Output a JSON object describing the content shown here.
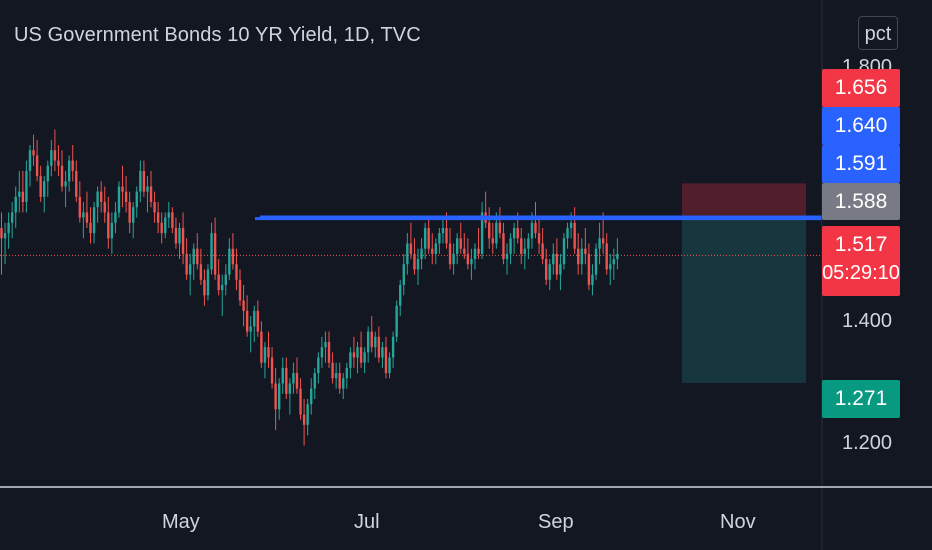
{
  "header": {
    "title": "US Government Bonds 10 YR Yield, 1D, TVC",
    "scale_mode": "pct"
  },
  "price_axis": {
    "visible_ticks": [
      "1.800",
      "1.400",
      "1.200"
    ],
    "tags": {
      "stop": "1.656",
      "level_upper": "1.640",
      "level_1": "1.591",
      "level_2": "1.588",
      "last": "1.517",
      "countdown": "05:29:10",
      "target": "1.271"
    }
  },
  "time_axis": {
    "labels": [
      "May",
      "Jul",
      "Sep",
      "Nov"
    ]
  },
  "colors": {
    "background": "#131722",
    "up": "#26a69a",
    "down": "#ef5350",
    "level_line": "#2962ff",
    "stop_zone": "rgba(242,54,69,0.28)",
    "target_zone": "rgba(38,166,154,0.22)",
    "tag_stop": "#f23645",
    "tag_upper": "#2962ff",
    "tag_grey": "#787b86",
    "tag_target": "#089981",
    "text": "#d1d4dc"
  },
  "chart_data": {
    "type": "candlestick",
    "title": "US Government Bonds 10 YR Yield, 1D, TVC",
    "y_unit": "pct",
    "ylim": [
      1.13,
      1.84
    ],
    "x_labels": [
      "May",
      "Jul",
      "Sep",
      "Nov"
    ],
    "current_price": 1.517,
    "horizontal_levels": [
      1.591,
      1.588
    ],
    "position": {
      "type": "short",
      "stop": 1.656,
      "entry": 1.588,
      "target": 1.271
    },
    "candles": [
      [
        1.57,
        1.6,
        1.48,
        1.55
      ],
      [
        1.55,
        1.58,
        1.5,
        1.56
      ],
      [
        1.56,
        1.6,
        1.53,
        1.58
      ],
      [
        1.58,
        1.62,
        1.55,
        1.6
      ],
      [
        1.6,
        1.65,
        1.57,
        1.63
      ],
      [
        1.63,
        1.68,
        1.6,
        1.64
      ],
      [
        1.64,
        1.68,
        1.6,
        1.62
      ],
      [
        1.62,
        1.7,
        1.6,
        1.68
      ],
      [
        1.68,
        1.73,
        1.65,
        1.72
      ],
      [
        1.72,
        1.75,
        1.69,
        1.71
      ],
      [
        1.71,
        1.74,
        1.66,
        1.67
      ],
      [
        1.67,
        1.69,
        1.62,
        1.63
      ],
      [
        1.63,
        1.67,
        1.6,
        1.66
      ],
      [
        1.66,
        1.7,
        1.63,
        1.69
      ],
      [
        1.69,
        1.74,
        1.67,
        1.72
      ],
      [
        1.72,
        1.76,
        1.68,
        1.7
      ],
      [
        1.7,
        1.73,
        1.67,
        1.69
      ],
      [
        1.69,
        1.72,
        1.64,
        1.65
      ],
      [
        1.65,
        1.68,
        1.61,
        1.66
      ],
      [
        1.66,
        1.71,
        1.64,
        1.7
      ],
      [
        1.7,
        1.73,
        1.66,
        1.68
      ],
      [
        1.68,
        1.7,
        1.62,
        1.63
      ],
      [
        1.63,
        1.66,
        1.58,
        1.59
      ],
      [
        1.59,
        1.62,
        1.55,
        1.6
      ],
      [
        1.6,
        1.64,
        1.57,
        1.58
      ],
      [
        1.58,
        1.61,
        1.54,
        1.56
      ],
      [
        1.56,
        1.62,
        1.54,
        1.61
      ],
      [
        1.61,
        1.65,
        1.58,
        1.64
      ],
      [
        1.64,
        1.66,
        1.6,
        1.62
      ],
      [
        1.62,
        1.65,
        1.58,
        1.6
      ],
      [
        1.6,
        1.63,
        1.53,
        1.55
      ],
      [
        1.55,
        1.6,
        1.52,
        1.58
      ],
      [
        1.58,
        1.62,
        1.56,
        1.6
      ],
      [
        1.6,
        1.66,
        1.59,
        1.65
      ],
      [
        1.65,
        1.69,
        1.61,
        1.64
      ],
      [
        1.64,
        1.67,
        1.6,
        1.62
      ],
      [
        1.62,
        1.64,
        1.56,
        1.58
      ],
      [
        1.58,
        1.62,
        1.55,
        1.61
      ],
      [
        1.61,
        1.65,
        1.59,
        1.64
      ],
      [
        1.64,
        1.7,
        1.62,
        1.68
      ],
      [
        1.68,
        1.7,
        1.63,
        1.64
      ],
      [
        1.64,
        1.67,
        1.6,
        1.65
      ],
      [
        1.65,
        1.68,
        1.61,
        1.62
      ],
      [
        1.62,
        1.64,
        1.58,
        1.6
      ],
      [
        1.6,
        1.62,
        1.56,
        1.58
      ],
      [
        1.58,
        1.6,
        1.54,
        1.56
      ],
      [
        1.56,
        1.6,
        1.55,
        1.59
      ],
      [
        1.59,
        1.62,
        1.57,
        1.6
      ],
      [
        1.6,
        1.61,
        1.56,
        1.57
      ],
      [
        1.57,
        1.59,
        1.53,
        1.54
      ],
      [
        1.54,
        1.58,
        1.51,
        1.57
      ],
      [
        1.57,
        1.6,
        1.5,
        1.52
      ],
      [
        1.52,
        1.55,
        1.47,
        1.48
      ],
      [
        1.48,
        1.52,
        1.44,
        1.5
      ],
      [
        1.5,
        1.54,
        1.47,
        1.53
      ],
      [
        1.53,
        1.56,
        1.49,
        1.5
      ],
      [
        1.5,
        1.53,
        1.46,
        1.47
      ],
      [
        1.47,
        1.49,
        1.42,
        1.44
      ],
      [
        1.44,
        1.5,
        1.43,
        1.49
      ],
      [
        1.49,
        1.58,
        1.48,
        1.56
      ],
      [
        1.56,
        1.59,
        1.47,
        1.48
      ],
      [
        1.48,
        1.51,
        1.44,
        1.45
      ],
      [
        1.45,
        1.48,
        1.4,
        1.46
      ],
      [
        1.46,
        1.5,
        1.44,
        1.48
      ],
      [
        1.48,
        1.55,
        1.47,
        1.53
      ],
      [
        1.53,
        1.56,
        1.49,
        1.5
      ],
      [
        1.5,
        1.53,
        1.45,
        1.47
      ],
      [
        1.47,
        1.49,
        1.42,
        1.43
      ],
      [
        1.43,
        1.46,
        1.38,
        1.41
      ],
      [
        1.41,
        1.44,
        1.36,
        1.37
      ],
      [
        1.37,
        1.4,
        1.33,
        1.38
      ],
      [
        1.38,
        1.42,
        1.35,
        1.41
      ],
      [
        1.41,
        1.43,
        1.36,
        1.37
      ],
      [
        1.37,
        1.39,
        1.3,
        1.31
      ],
      [
        1.31,
        1.35,
        1.28,
        1.34
      ],
      [
        1.34,
        1.37,
        1.3,
        1.32
      ],
      [
        1.32,
        1.34,
        1.26,
        1.27
      ],
      [
        1.27,
        1.3,
        1.18,
        1.22
      ],
      [
        1.22,
        1.28,
        1.2,
        1.27
      ],
      [
        1.27,
        1.32,
        1.25,
        1.3
      ],
      [
        1.3,
        1.32,
        1.24,
        1.25
      ],
      [
        1.25,
        1.28,
        1.21,
        1.27
      ],
      [
        1.27,
        1.31,
        1.25,
        1.29
      ],
      [
        1.29,
        1.32,
        1.25,
        1.26
      ],
      [
        1.26,
        1.28,
        1.2,
        1.21
      ],
      [
        1.21,
        1.24,
        1.15,
        1.19
      ],
      [
        1.19,
        1.24,
        1.17,
        1.23
      ],
      [
        1.23,
        1.28,
        1.21,
        1.26
      ],
      [
        1.26,
        1.3,
        1.24,
        1.29
      ],
      [
        1.29,
        1.33,
        1.27,
        1.32
      ],
      [
        1.32,
        1.36,
        1.3,
        1.34
      ],
      [
        1.34,
        1.37,
        1.31,
        1.35
      ],
      [
        1.35,
        1.37,
        1.3,
        1.31
      ],
      [
        1.31,
        1.33,
        1.27,
        1.28
      ],
      [
        1.28,
        1.31,
        1.26,
        1.29
      ],
      [
        1.29,
        1.31,
        1.25,
        1.26
      ],
      [
        1.26,
        1.29,
        1.24,
        1.28
      ],
      [
        1.28,
        1.31,
        1.26,
        1.3
      ],
      [
        1.3,
        1.34,
        1.28,
        1.33
      ],
      [
        1.33,
        1.36,
        1.3,
        1.32
      ],
      [
        1.32,
        1.35,
        1.29,
        1.34
      ],
      [
        1.34,
        1.37,
        1.3,
        1.31
      ],
      [
        1.31,
        1.34,
        1.29,
        1.33
      ],
      [
        1.33,
        1.38,
        1.31,
        1.37
      ],
      [
        1.37,
        1.4,
        1.33,
        1.34
      ],
      [
        1.34,
        1.37,
        1.32,
        1.36
      ],
      [
        1.36,
        1.38,
        1.31,
        1.32
      ],
      [
        1.32,
        1.35,
        1.3,
        1.34
      ],
      [
        1.34,
        1.36,
        1.28,
        1.29
      ],
      [
        1.29,
        1.33,
        1.28,
        1.32
      ],
      [
        1.32,
        1.37,
        1.3,
        1.36
      ],
      [
        1.36,
        1.43,
        1.35,
        1.42
      ],
      [
        1.42,
        1.47,
        1.4,
        1.46
      ],
      [
        1.46,
        1.52,
        1.44,
        1.5
      ],
      [
        1.5,
        1.56,
        1.48,
        1.54
      ],
      [
        1.54,
        1.58,
        1.51,
        1.52
      ],
      [
        1.52,
        1.55,
        1.48,
        1.49
      ],
      [
        1.49,
        1.53,
        1.46,
        1.51
      ],
      [
        1.51,
        1.55,
        1.49,
        1.53
      ],
      [
        1.53,
        1.58,
        1.51,
        1.57
      ],
      [
        1.57,
        1.59,
        1.52,
        1.53
      ],
      [
        1.53,
        1.56,
        1.5,
        1.52
      ],
      [
        1.52,
        1.55,
        1.5,
        1.54
      ],
      [
        1.54,
        1.57,
        1.52,
        1.56
      ],
      [
        1.56,
        1.59,
        1.54,
        1.57
      ],
      [
        1.57,
        1.6,
        1.53,
        1.54
      ],
      [
        1.54,
        1.57,
        1.49,
        1.5
      ],
      [
        1.5,
        1.54,
        1.48,
        1.52
      ],
      [
        1.52,
        1.56,
        1.5,
        1.55
      ],
      [
        1.55,
        1.58,
        1.52,
        1.53
      ],
      [
        1.53,
        1.56,
        1.51,
        1.52
      ],
      [
        1.52,
        1.55,
        1.49,
        1.5
      ],
      [
        1.5,
        1.53,
        1.47,
        1.51
      ],
      [
        1.51,
        1.54,
        1.49,
        1.53
      ],
      [
        1.53,
        1.57,
        1.51,
        1.52
      ],
      [
        1.52,
        1.62,
        1.51,
        1.6
      ],
      [
        1.6,
        1.64,
        1.57,
        1.58
      ],
      [
        1.58,
        1.61,
        1.53,
        1.55
      ],
      [
        1.55,
        1.58,
        1.52,
        1.54
      ],
      [
        1.54,
        1.6,
        1.53,
        1.58
      ],
      [
        1.58,
        1.61,
        1.55,
        1.56
      ],
      [
        1.56,
        1.58,
        1.5,
        1.51
      ],
      [
        1.51,
        1.54,
        1.48,
        1.52
      ],
      [
        1.52,
        1.56,
        1.5,
        1.55
      ],
      [
        1.55,
        1.58,
        1.52,
        1.57
      ],
      [
        1.57,
        1.6,
        1.54,
        1.55
      ],
      [
        1.55,
        1.57,
        1.5,
        1.52
      ],
      [
        1.52,
        1.55,
        1.49,
        1.53
      ],
      [
        1.53,
        1.56,
        1.51,
        1.55
      ],
      [
        1.55,
        1.6,
        1.53,
        1.58
      ],
      [
        1.58,
        1.62,
        1.55,
        1.56
      ],
      [
        1.56,
        1.59,
        1.52,
        1.54
      ],
      [
        1.54,
        1.57,
        1.5,
        1.51
      ],
      [
        1.51,
        1.53,
        1.46,
        1.47
      ],
      [
        1.47,
        1.51,
        1.45,
        1.5
      ],
      [
        1.5,
        1.54,
        1.48,
        1.52
      ],
      [
        1.52,
        1.55,
        1.47,
        1.48
      ],
      [
        1.48,
        1.52,
        1.45,
        1.5
      ],
      [
        1.5,
        1.56,
        1.49,
        1.55
      ],
      [
        1.55,
        1.58,
        1.53,
        1.57
      ],
      [
        1.57,
        1.6,
        1.55,
        1.58
      ],
      [
        1.58,
        1.61,
        1.52,
        1.53
      ],
      [
        1.53,
        1.56,
        1.48,
        1.5
      ],
      [
        1.5,
        1.55,
        1.48,
        1.53
      ],
      [
        1.53,
        1.57,
        1.5,
        1.52
      ],
      [
        1.52,
        1.54,
        1.45,
        1.46
      ],
      [
        1.46,
        1.5,
        1.44,
        1.48
      ],
      [
        1.48,
        1.54,
        1.47,
        1.53
      ],
      [
        1.53,
        1.58,
        1.5,
        1.55
      ],
      [
        1.55,
        1.6,
        1.52,
        1.54
      ],
      [
        1.54,
        1.56,
        1.48,
        1.49
      ],
      [
        1.49,
        1.52,
        1.46,
        1.5
      ],
      [
        1.5,
        1.53,
        1.47,
        1.51
      ],
      [
        1.51,
        1.55,
        1.49,
        1.52
      ]
    ]
  }
}
